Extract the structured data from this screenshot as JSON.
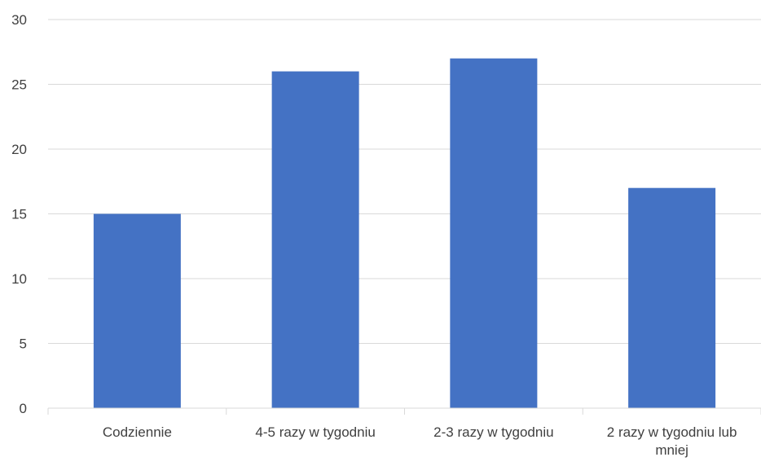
{
  "chart_data": {
    "type": "bar",
    "categories": [
      [
        "Codziennie"
      ],
      [
        "4-5 razy w tygodniu"
      ],
      [
        "2-3 razy w tygodniu"
      ],
      [
        "2 razy w tygodniu lub",
        "mniej"
      ]
    ],
    "values": [
      15,
      26,
      27,
      17
    ],
    "ylim": [
      0,
      30
    ],
    "yticks": [
      "0",
      "5",
      "10",
      "15",
      "20",
      "25",
      "30"
    ],
    "grid": true,
    "bar_color": "#4472C4"
  }
}
